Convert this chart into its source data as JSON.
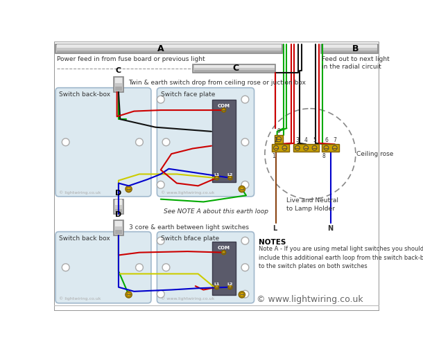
{
  "bg_color": "#ffffff",
  "text_power_feed": "Power feed in from fuse board or previous light",
  "text_feed_out": "Feed out to next light\nin the radial circuit",
  "text_twin_earth": "Twin & earth switch drop from ceiling rose or juction box",
  "text_3core": "3 core & earth between light switches",
  "text_see_note": "See NOTE A about this earth loop",
  "text_ceiling_rose": "Ceiling rose",
  "text_live_neutral": "Live and Neutral\nto Lamp Holder",
  "text_notes_title": "NOTES",
  "text_notes_body": "Note A - If you are using metal light switches you should\ninclude this additional earth loop from the switch back-boxes\nto the switch plates on both switches",
  "text_switch_backbox1": "Switch back-box",
  "text_switch_faceplate1": "Switch face plate",
  "text_switch_backbox2": "Switch back box",
  "text_switch_faceplate2": "Switch bface plate",
  "text_lightwiring1": "© lightwiring.co.uk",
  "text_wwwlightwiring1": "© www.lightwiring.co.uk",
  "text_wwwlightwiring2": "© www.lightwiring.co.uk",
  "text_lightwiring2": "© lightwiring.co.uk",
  "text_copyright": "© www.lightwiring.co.uk",
  "wire_colors": {
    "red": "#cc0000",
    "black": "#111111",
    "green": "#00aa00",
    "yellow": "#cccc00",
    "blue": "#0000cc",
    "brown": "#8B4513"
  },
  "terminal_color": "#c8a000",
  "box_bg": "#dce9f0",
  "box_border": "#a0b8cc"
}
